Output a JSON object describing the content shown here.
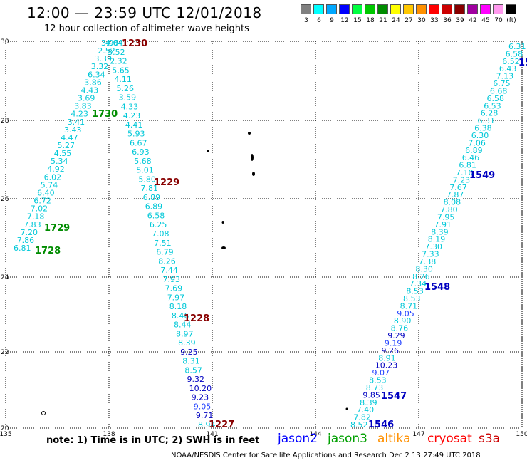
{
  "header": {
    "title": "12:00 — 23:59 UTC 12/01/2018",
    "subtitle": "12 hour collection of altimeter wave heights"
  },
  "legend": {
    "unit": "(ft)",
    "bins": [
      {
        "label": "3",
        "color": "#808080"
      },
      {
        "label": "6",
        "color": "#00ffff"
      },
      {
        "label": "9",
        "color": "#00a8ff"
      },
      {
        "label": "12",
        "color": "#0000ff"
      },
      {
        "label": "15",
        "color": "#00ff40"
      },
      {
        "label": "18",
        "color": "#00c800"
      },
      {
        "label": "21",
        "color": "#008c00"
      },
      {
        "label": "24",
        "color": "#ffff00"
      },
      {
        "label": "27",
        "color": "#ffc800"
      },
      {
        "label": "30",
        "color": "#ff9000"
      },
      {
        "label": "33",
        "color": "#ff0000"
      },
      {
        "label": "36",
        "color": "#cc0000"
      },
      {
        "label": "39",
        "color": "#880000"
      },
      {
        "label": "42",
        "color": "#a000a0"
      },
      {
        "label": "45",
        "color": "#ff00ff"
      },
      {
        "label": "70",
        "color": "#ff99ee"
      },
      {
        "label": "(ft)",
        "color": "#000000"
      }
    ]
  },
  "axes": {
    "x_ticks": [
      "135",
      "138",
      "141",
      "144",
      "147",
      "150"
    ],
    "y_ticks": [
      "30",
      "28",
      "26",
      "24",
      "22",
      "20"
    ]
  },
  "map": {
    "colors": {
      "cyan": "#00c8d8",
      "blue9": "#2040ff",
      "blue12": "#0000c0",
      "land": "#000000"
    },
    "tracks": [
      {
        "name": "track-west-ascending",
        "x0": 19,
        "y0": 348,
        "x1": 142,
        "y1": 60,
        "values": [
          "6.81",
          "7.86",
          "7.20",
          "7.83",
          "7.18",
          "7.02",
          "6.72",
          "6.40",
          "5.74",
          "6.02",
          "4.92",
          "5.34",
          "4.55",
          "5.27",
          "4.47",
          "3.43",
          "3.41",
          "4.23",
          "3.83",
          "3.69",
          "4.43",
          "3.86",
          "6.34",
          "3.32",
          "3.39",
          "2.52",
          "3.96"
        ]
      },
      {
        "name": "track-central-descending",
        "x0": 148,
        "y0": 60,
        "x1": 278,
        "y1": 596,
        "values": [
          "4.04",
          "3.52",
          "2.32",
          "5.65",
          "4.11",
          "5.26",
          "3.59",
          "4.33",
          "4.23",
          "4.41",
          "5.93",
          "6.67",
          "6.93",
          "5.68",
          "5.01",
          "5.80",
          "7.81",
          "6.89",
          "6.89",
          "6.58",
          "6.25",
          "7.08",
          "7.51",
          "6.79",
          "8.26",
          "7.44",
          "7.93",
          "7.69",
          "7.97",
          "8.18",
          "8.46",
          "8.44",
          "8.97",
          "8.39",
          "9.25",
          "8.31",
          "8.57",
          "9.32",
          "10.20",
          "9.23",
          "9.05",
          "9.71",
          "8.94"
        ]
      },
      {
        "name": "track-east-ascending",
        "x0": 492,
        "y0": 596,
        "x1": 714,
        "y1": 65,
        "values": [
          "8.52",
          "7.82",
          "7.40",
          "8.39",
          "9.85",
          "8.73",
          "8.53",
          "9.07",
          "10.23",
          "8.91",
          "9.26",
          "9.19",
          "9.29",
          "8.76",
          "8.90",
          "9.05",
          "8.71",
          "8.53",
          "8.53",
          "7.34",
          "8.26",
          "8.30",
          "7.38",
          "7.33",
          "7.30",
          "8.19",
          "8.39",
          "7.91",
          "7.95",
          "7.80",
          "8.08",
          "7.87",
          "7.67",
          "7.23",
          "7.10",
          "6.81",
          "6.46",
          "6.89",
          "7.06",
          "6.30",
          "6.38",
          "6.31",
          "6.28",
          "6.53",
          "6.58",
          "6.68",
          "6.75",
          "7.13",
          "6.43",
          "6.52",
          "6.58",
          "6.31"
        ]
      }
    ],
    "time_labels": [
      {
        "name": "time-1230",
        "text": "1230",
        "color": "#880000"
      },
      {
        "name": "time-1730",
        "text": "1730",
        "color": "#008c00"
      },
      {
        "name": "time-1729",
        "text": "1729",
        "color": "#008c00"
      },
      {
        "name": "time-1728",
        "text": "1728",
        "color": "#008c00"
      },
      {
        "name": "time-1229",
        "text": "1229",
        "color": "#880000"
      },
      {
        "name": "time-1228",
        "text": "1228",
        "color": "#880000"
      },
      {
        "name": "time-1227",
        "text": "1227",
        "color": "#880000"
      },
      {
        "name": "time-1549",
        "text": "1549",
        "color": "#0000c0"
      },
      {
        "name": "time-1548",
        "text": "1548",
        "color": "#0000c0"
      },
      {
        "name": "time-1547",
        "text": "1547",
        "color": "#0000c0"
      },
      {
        "name": "time-1546",
        "text": "1546",
        "color": "#0000c0"
      },
      {
        "name": "time-15-edge",
        "text": "15",
        "color": "#0000c0"
      }
    ]
  },
  "footer": {
    "note": "note: 1) Time is in UTC; 2) SWH is in feet",
    "satellites": [
      {
        "name": "jason2",
        "color": "#0000ff"
      },
      {
        "name": "jason3",
        "color": "#00a000"
      },
      {
        "name": "altika",
        "color": "#ff9000"
      },
      {
        "name": "cryosat",
        "color": "#ff0000"
      },
      {
        "name": "s3a",
        "color": "#cc0000"
      }
    ],
    "credit": "NOAA/NESDIS Center for Satellite Applications and Research    Dec  2 13:27:49 UTC 2018"
  }
}
